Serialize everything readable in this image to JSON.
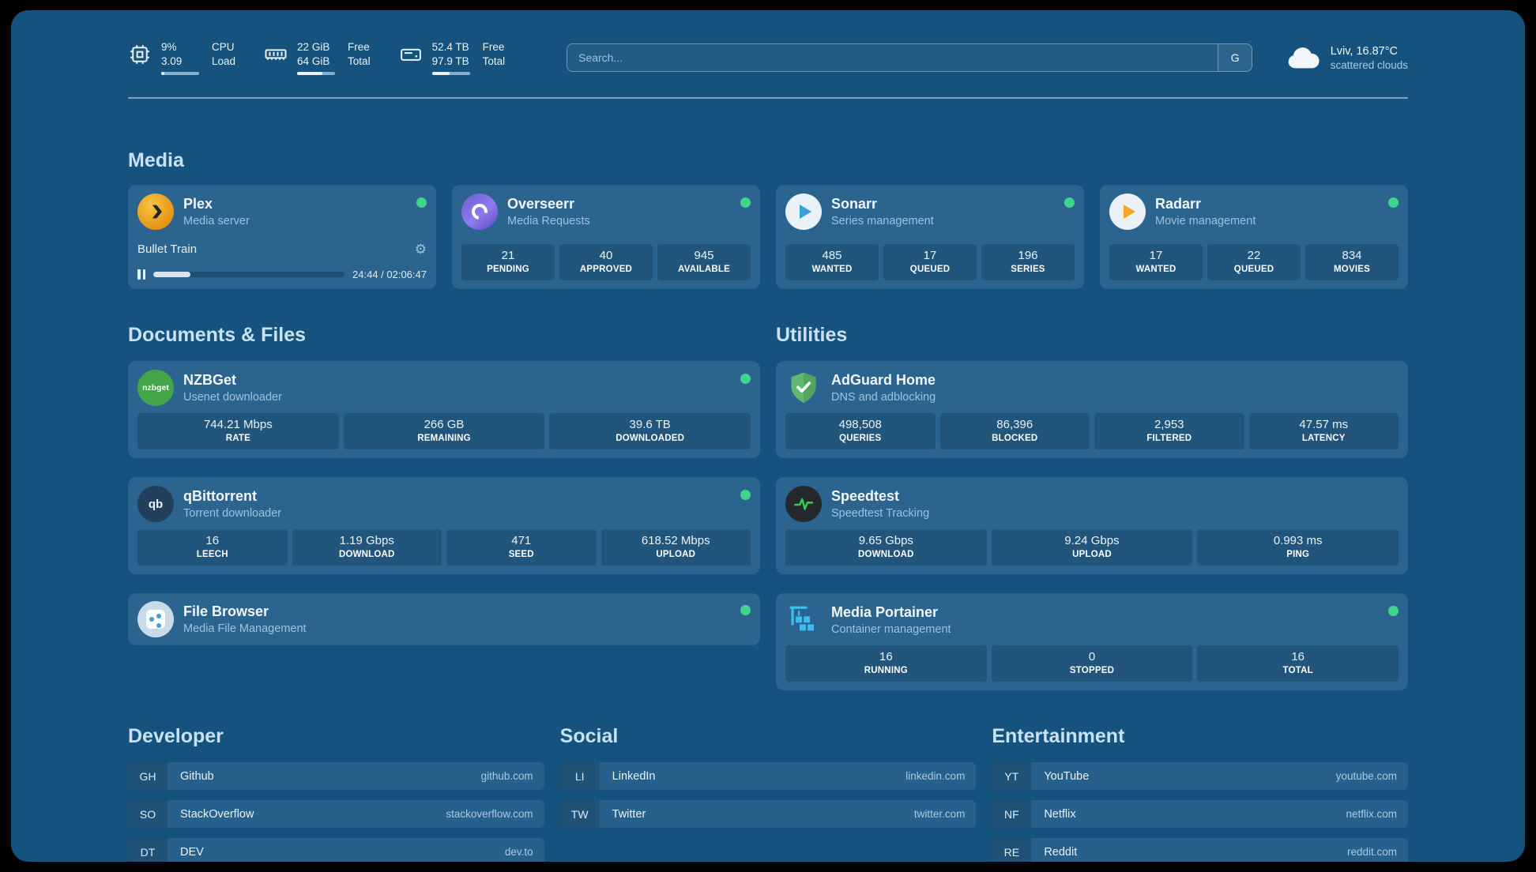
{
  "colors": {
    "background": "#15527E",
    "card": "#2A648F",
    "status_online": "#3FD68C"
  },
  "topbar": {
    "cpu": {
      "icon": "cpu-icon",
      "values": [
        "9%",
        "3.09"
      ],
      "labels": [
        "CPU",
        "Load"
      ],
      "progress_pct": 9
    },
    "memory": {
      "icon": "memory-icon",
      "values": [
        "22 GiB",
        "64 GiB"
      ],
      "labels": [
        "Free",
        "Total"
      ],
      "progress_pct": 66
    },
    "disk": {
      "icon": "disk-icon",
      "values": [
        "52.4 TB",
        "97.9 TB"
      ],
      "labels": [
        "Free",
        "Total"
      ],
      "progress_pct": 46
    },
    "search": {
      "placeholder": "Search...",
      "provider_label": "G"
    },
    "weather": {
      "icon": "cloud-icon",
      "location": "Lviv, 16.87°C",
      "condition": "scattered clouds"
    }
  },
  "media": {
    "title": "Media",
    "plex": {
      "name": "Plex",
      "subtitle": "Media server",
      "now_playing": "Bullet Train",
      "elapsed_total": "24:44 / 02:06:47",
      "progress_pct": 19.5
    },
    "overseerr": {
      "name": "Overseerr",
      "subtitle": "Media Requests",
      "stats": [
        {
          "value": "21",
          "label": "PENDING"
        },
        {
          "value": "40",
          "label": "APPROVED"
        },
        {
          "value": "945",
          "label": "AVAILABLE"
        }
      ]
    },
    "sonarr": {
      "name": "Sonarr",
      "subtitle": "Series management",
      "stats": [
        {
          "value": "485",
          "label": "WANTED"
        },
        {
          "value": "17",
          "label": "QUEUED"
        },
        {
          "value": "196",
          "label": "SERIES"
        }
      ]
    },
    "radarr": {
      "name": "Radarr",
      "subtitle": "Movie management",
      "stats": [
        {
          "value": "17",
          "label": "WANTED"
        },
        {
          "value": "22",
          "label": "QUEUED"
        },
        {
          "value": "834",
          "label": "MOVIES"
        }
      ]
    }
  },
  "documents": {
    "title": "Documents & Files",
    "nzbget": {
      "name": "NZBGet",
      "subtitle": "Usenet downloader",
      "stats": [
        {
          "value": "744.21 Mbps",
          "label": "RATE"
        },
        {
          "value": "266 GB",
          "label": "REMAINING"
        },
        {
          "value": "39.6 TB",
          "label": "DOWNLOADED"
        }
      ]
    },
    "qbittorrent": {
      "name": "qBittorrent",
      "subtitle": "Torrent downloader",
      "stats": [
        {
          "value": "16",
          "label": "LEECH"
        },
        {
          "value": "1.19 Gbps",
          "label": "DOWNLOAD"
        },
        {
          "value": "471",
          "label": "SEED"
        },
        {
          "value": "618.52 Mbps",
          "label": "UPLOAD"
        }
      ]
    },
    "filebrowser": {
      "name": "File Browser",
      "subtitle": "Media File Management"
    }
  },
  "utilities": {
    "title": "Utilities",
    "adguard": {
      "name": "AdGuard Home",
      "subtitle": "DNS and adblocking",
      "stats": [
        {
          "value": "498,508",
          "label": "QUERIES"
        },
        {
          "value": "86,396",
          "label": "BLOCKED"
        },
        {
          "value": "2,953",
          "label": "FILTERED"
        },
        {
          "value": "47.57 ms",
          "label": "LATENCY"
        }
      ]
    },
    "speedtest": {
      "name": "Speedtest",
      "subtitle": "Speedtest Tracking",
      "stats": [
        {
          "value": "9.65 Gbps",
          "label": "DOWNLOAD"
        },
        {
          "value": "9.24 Gbps",
          "label": "UPLOAD"
        },
        {
          "value": "0.993 ms",
          "label": "PING"
        }
      ]
    },
    "portainer": {
      "name": "Media Portainer",
      "subtitle": "Container management",
      "stats": [
        {
          "value": "16",
          "label": "RUNNING"
        },
        {
          "value": "0",
          "label": "STOPPED"
        },
        {
          "value": "16",
          "label": "TOTAL"
        }
      ]
    }
  },
  "bookmarks": {
    "developer": {
      "title": "Developer",
      "items": [
        {
          "abbr": "GH",
          "name": "Github",
          "domain": "github.com"
        },
        {
          "abbr": "SO",
          "name": "StackOverflow",
          "domain": "stackoverflow.com"
        },
        {
          "abbr": "DT",
          "name": "DEV",
          "domain": "dev.to"
        }
      ]
    },
    "social": {
      "title": "Social",
      "items": [
        {
          "abbr": "LI",
          "name": "LinkedIn",
          "domain": "linkedin.com"
        },
        {
          "abbr": "TW",
          "name": "Twitter",
          "domain": "twitter.com"
        }
      ]
    },
    "entertainment": {
      "title": "Entertainment",
      "items": [
        {
          "abbr": "YT",
          "name": "YouTube",
          "domain": "youtube.com"
        },
        {
          "abbr": "NF",
          "name": "Netflix",
          "domain": "netflix.com"
        },
        {
          "abbr": "RE",
          "name": "Reddit",
          "domain": "reddit.com"
        }
      ]
    }
  },
  "icons": {
    "nzbget_text": "nzbget",
    "qbittorrent_text": "qb",
    "gear": "⚙"
  }
}
